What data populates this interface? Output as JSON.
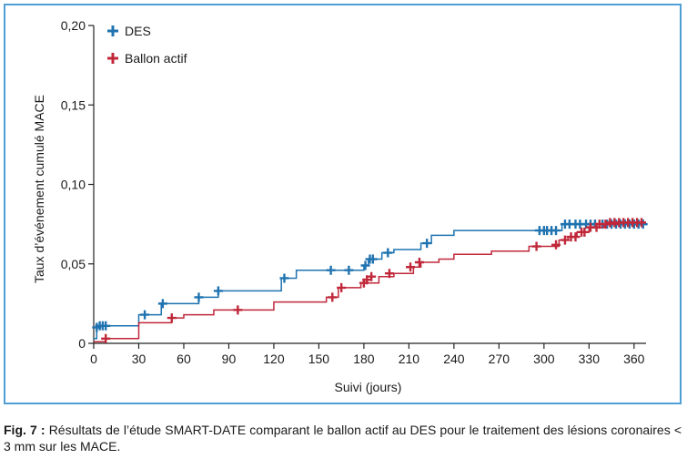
{
  "chart_data": {
    "type": "line",
    "title": "",
    "xlabel": "Suivi (jours)",
    "ylabel": "Taux d’événement cumulé MACE",
    "xlim": [
      0,
      368
    ],
    "ylim": [
      0,
      0.2
    ],
    "x_ticks": [
      0,
      30,
      60,
      90,
      120,
      150,
      180,
      210,
      240,
      270,
      300,
      330,
      360
    ],
    "x_tick_labels": [
      "0",
      "30",
      "60",
      "90",
      "120",
      "150",
      "180",
      "210",
      "240",
      "270",
      "300",
      "330",
      "360"
    ],
    "y_ticks": [
      0,
      0.05,
      0.1,
      0.15,
      0.2
    ],
    "y_tick_labels": [
      "0",
      "0,05",
      "0,10",
      "0,15",
      "0,20"
    ],
    "grid": false,
    "legend_position": "top-left",
    "series": [
      {
        "name": "DES",
        "color": "#1f73b0",
        "steps": [
          [
            0,
            0.003
          ],
          [
            2,
            0.011
          ],
          [
            30,
            0.018
          ],
          [
            45,
            0.025
          ],
          [
            70,
            0.029
          ],
          [
            83,
            0.033
          ],
          [
            125,
            0.041
          ],
          [
            135,
            0.046
          ],
          [
            180,
            0.049
          ],
          [
            183,
            0.053
          ],
          [
            192,
            0.057
          ],
          [
            200,
            0.059
          ],
          [
            218,
            0.063
          ],
          [
            225,
            0.068
          ],
          [
            240,
            0.071
          ],
          [
            312,
            0.075
          ],
          [
            368,
            0.075
          ]
        ],
        "censor_x": [
          2,
          4,
          6,
          8,
          34,
          46,
          70,
          83,
          127,
          158,
          170,
          181,
          184,
          186,
          196,
          222,
          297,
          300,
          302,
          305,
          308,
          314,
          317,
          321,
          324,
          328,
          331,
          334,
          339,
          342,
          345,
          348,
          351,
          354,
          357,
          360,
          363,
          366
        ],
        "censor_y": [
          0.01,
          0.011,
          0.011,
          0.011,
          0.018,
          0.025,
          0.029,
          0.033,
          0.041,
          0.046,
          0.046,
          0.049,
          0.053,
          0.053,
          0.057,
          0.063,
          0.071,
          0.071,
          0.071,
          0.071,
          0.071,
          0.075,
          0.075,
          0.075,
          0.075,
          0.075,
          0.075,
          0.075,
          0.075,
          0.075,
          0.075,
          0.075,
          0.075,
          0.075,
          0.075,
          0.075,
          0.075,
          0.075
        ]
      },
      {
        "name": "Ballon actif",
        "color": "#c0283a",
        "steps": [
          [
            0,
            0.001
          ],
          [
            8,
            0.003
          ],
          [
            30,
            0.013
          ],
          [
            52,
            0.016
          ],
          [
            60,
            0.018
          ],
          [
            80,
            0.021
          ],
          [
            120,
            0.026
          ],
          [
            155,
            0.029
          ],
          [
            163,
            0.035
          ],
          [
            178,
            0.038
          ],
          [
            190,
            0.042
          ],
          [
            200,
            0.044
          ],
          [
            213,
            0.048
          ],
          [
            218,
            0.051
          ],
          [
            230,
            0.053
          ],
          [
            240,
            0.056
          ],
          [
            265,
            0.058
          ],
          [
            290,
            0.061
          ],
          [
            310,
            0.065
          ],
          [
            316,
            0.067
          ],
          [
            322,
            0.07
          ],
          [
            330,
            0.073
          ],
          [
            340,
            0.075
          ],
          [
            350,
            0.076
          ],
          [
            368,
            0.076
          ]
        ],
        "censor_x": [
          8,
          52,
          96,
          159,
          165,
          180,
          182,
          185,
          197,
          211,
          217,
          295,
          308,
          314,
          318,
          321,
          325,
          327,
          331,
          335,
          337,
          341,
          344,
          347,
          350,
          353,
          356,
          359,
          362,
          365
        ],
        "censor_y": [
          0.003,
          0.016,
          0.021,
          0.029,
          0.035,
          0.038,
          0.04,
          0.042,
          0.044,
          0.048,
          0.051,
          0.061,
          0.062,
          0.065,
          0.067,
          0.067,
          0.07,
          0.07,
          0.073,
          0.073,
          0.075,
          0.075,
          0.076,
          0.076,
          0.076,
          0.076,
          0.076,
          0.076,
          0.076,
          0.076
        ]
      }
    ]
  },
  "caption": {
    "label": "Fig. 7 :",
    "text": " Résultats de l’étude SMART-DATE comparant le ballon actif au DES pour le traitement des lésions coronaires < 3 mm sur les MACE."
  }
}
